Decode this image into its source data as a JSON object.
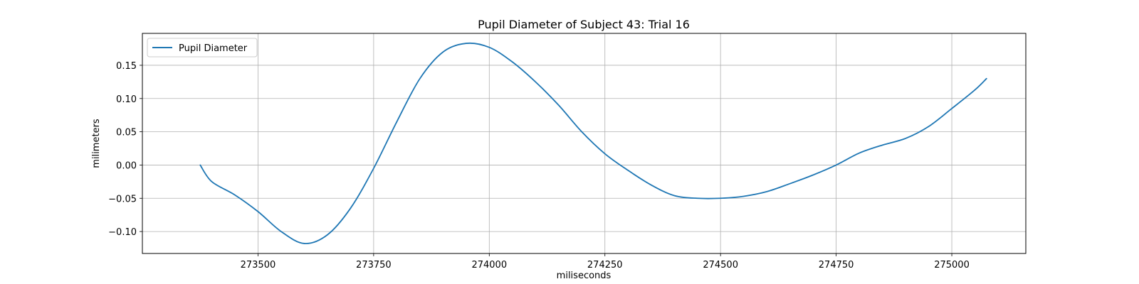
{
  "chart_data": {
    "type": "line",
    "title": "Pupil Diameter of Subject 43: Trial 16",
    "xlabel": "miliseconds",
    "ylabel": "milimeters",
    "xlim": [
      273250,
      275160
    ],
    "ylim": [
      -0.133,
      0.198
    ],
    "xticks": [
      273500,
      273750,
      274000,
      274250,
      274500,
      274750,
      275000
    ],
    "yticks": [
      -0.1,
      -0.05,
      0.0,
      0.05,
      0.1,
      0.15
    ],
    "xtick_labels": [
      "273500",
      "273750",
      "274000",
      "274250",
      "274500",
      "274750",
      "275000"
    ],
    "ytick_labels": [
      "−0.10",
      "−0.05",
      "0.00",
      "0.05",
      "0.10",
      "0.15"
    ],
    "grid": true,
    "legend": {
      "position": "upper-left",
      "entries": [
        "Pupil Diameter"
      ]
    },
    "series": [
      {
        "name": "Pupil Diameter",
        "color": "#1f77b4",
        "x": [
          273375,
          273400,
          273450,
          273500,
          273550,
          273600,
          273650,
          273700,
          273750,
          273800,
          273850,
          273900,
          273950,
          274000,
          274050,
          274100,
          274150,
          274200,
          274250,
          274300,
          274350,
          274400,
          274450,
          274500,
          274550,
          274600,
          274650,
          274700,
          274750,
          274800,
          274850,
          274900,
          274950,
          275000,
          275050,
          275075
        ],
        "y": [
          0.0,
          -0.025,
          -0.045,
          -0.07,
          -0.1,
          -0.118,
          -0.105,
          -0.065,
          -0.005,
          0.065,
          0.13,
          0.17,
          0.183,
          0.177,
          0.155,
          0.125,
          0.09,
          0.05,
          0.017,
          -0.008,
          -0.03,
          -0.046,
          -0.05,
          -0.05,
          -0.047,
          -0.04,
          -0.028,
          -0.015,
          0.0,
          0.018,
          0.03,
          0.04,
          0.058,
          0.085,
          0.113,
          0.13
        ]
      }
    ]
  }
}
